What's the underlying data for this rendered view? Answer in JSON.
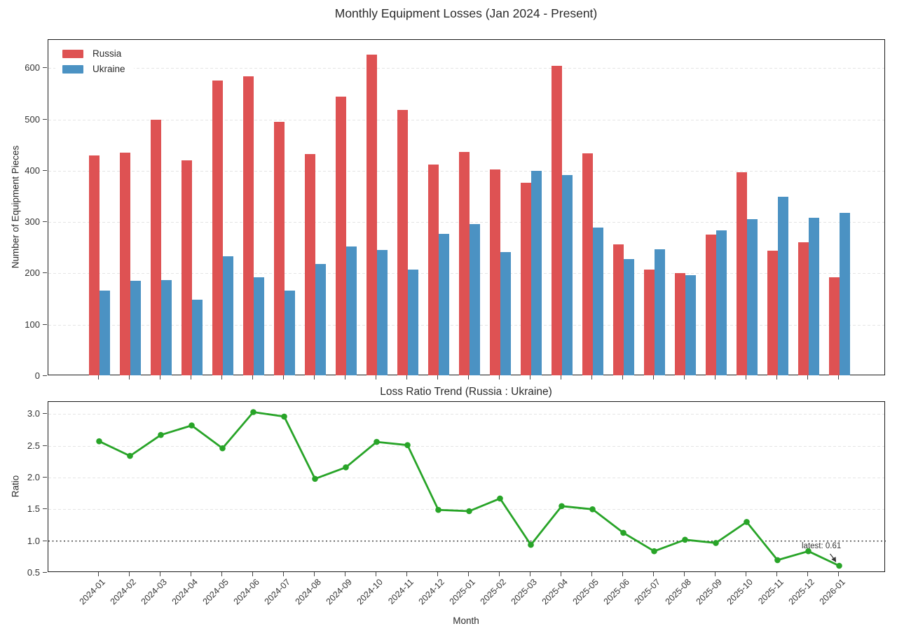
{
  "chart_data": [
    {
      "type": "bar",
      "title": "Monthly Equipment Losses (Jan 2024 - Present)",
      "xlabel": "",
      "ylabel": "Number of Equipment Pieces",
      "categories": [
        "2024-01",
        "2024-02",
        "2024-03",
        "2024-04",
        "2024-05",
        "2024-06",
        "2024-07",
        "2024-08",
        "2024-09",
        "2024-10",
        "2024-11",
        "2024-12",
        "2025-01",
        "2025-02",
        "2025-03",
        "2025-04",
        "2025-05",
        "2025-06",
        "2025-07",
        "2025-08",
        "2025-09",
        "2025-10",
        "2025-11",
        "2025-12",
        "2026-01"
      ],
      "series": [
        {
          "name": "Russia",
          "color": "#de5253",
          "values": [
            430,
            435,
            499,
            420,
            576,
            584,
            495,
            433,
            545,
            627,
            519,
            412,
            436,
            403,
            377,
            605,
            434,
            257,
            207,
            200,
            276,
            397,
            244,
            261,
            193
          ]
        },
        {
          "name": "Ukraine",
          "color": "#4b92c3",
          "values": [
            167,
            186,
            187,
            149,
            234,
            193,
            167,
            219,
            252,
            245,
            207,
            277,
            296,
            242,
            400,
            391,
            289,
            228,
            247,
            197,
            284,
            305,
            349,
            309,
            318
          ]
        }
      ],
      "ylim": [
        0,
        655
      ],
      "yticks": [
        0,
        100,
        200,
        300,
        400,
        500,
        600
      ],
      "grid": true,
      "legend_position": "upper left",
      "bar_width": 0.35
    },
    {
      "type": "line",
      "title": "Loss Ratio Trend (Russia : Ukraine)",
      "xlabel": "Month",
      "ylabel": "Ratio",
      "x": [
        "2024-01",
        "2024-02",
        "2024-03",
        "2024-04",
        "2024-05",
        "2024-06",
        "2024-07",
        "2024-08",
        "2024-09",
        "2024-10",
        "2024-11",
        "2024-12",
        "2025-01",
        "2025-02",
        "2025-03",
        "2025-04",
        "2025-05",
        "2025-06",
        "2025-07",
        "2025-08",
        "2025-09",
        "2025-10",
        "2025-11",
        "2025-12",
        "2026-01"
      ],
      "series": [
        {
          "name": "Loss ratio (Russia : Ukraine)",
          "color": "#28a428",
          "marker": "circle",
          "values": [
            2.57,
            2.34,
            2.67,
            2.82,
            2.46,
            3.03,
            2.96,
            1.98,
            2.16,
            2.56,
            2.51,
            1.49,
            1.47,
            1.67,
            0.94,
            1.55,
            1.5,
            1.13,
            0.84,
            1.02,
            0.97,
            1.3,
            0.7,
            0.84,
            0.61
          ]
        }
      ],
      "ylim": [
        0.5,
        3.19
      ],
      "yticks": [
        0.5,
        1.0,
        1.5,
        2.0,
        2.5,
        3.0
      ],
      "grid": true,
      "reference_line": {
        "y": 1.0,
        "color": "#333333",
        "style": "dotted"
      },
      "annotation": {
        "text": "latest: 0.61",
        "target_x": "2026-01",
        "target_y": 0.61
      }
    }
  ]
}
